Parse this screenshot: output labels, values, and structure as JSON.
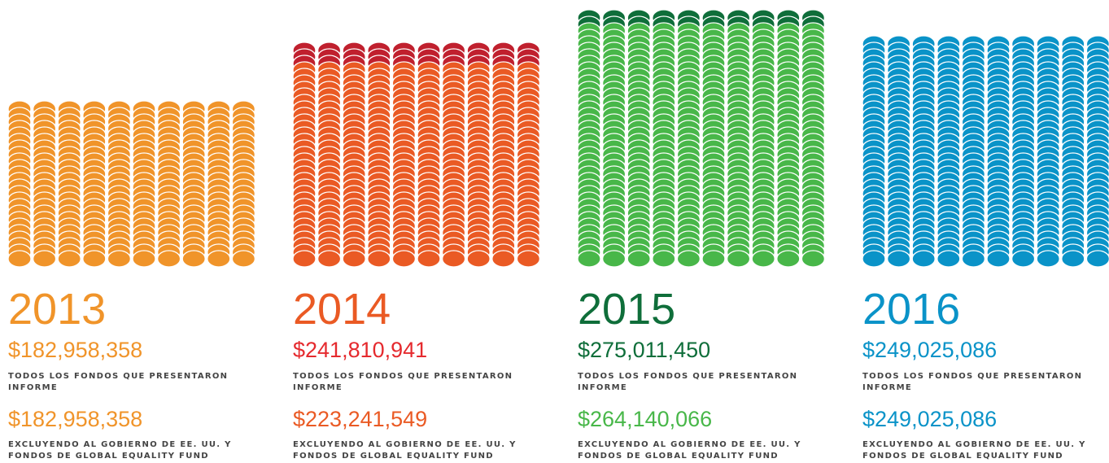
{
  "chart_data": {
    "type": "coin-stack",
    "categories": [
      "2013",
      "2014",
      "2015",
      "2016"
    ],
    "year_colors": [
      "#f0942a",
      "#ea5a24",
      "#0f6e3a",
      "#0a93c8"
    ],
    "series": [
      {
        "name": "TODOS LOS FONDOS QUE PRESENTARON INFORME",
        "colors": [
          "#f0942a",
          "#c0202e",
          "#0f6e3a",
          "#0a93c8"
        ],
        "text_colors": [
          "#f0942a",
          "#e52a2e",
          "#0f6e3a",
          "#0a93c8"
        ],
        "values": [
          182958358,
          241810941,
          275011450,
          249025086
        ],
        "value_labels": [
          "$182,958,358",
          "$241,810,941",
          "$275,011,450",
          "$249,025,086"
        ]
      },
      {
        "name": "EXCLUYENDO AL GOBIERNO DE EE. UU. Y FONDOS DE GLOBAL EQUALITY FUND",
        "colors": [
          "#f0942a",
          "#ea5a24",
          "#48b749",
          "#0a93c8"
        ],
        "text_colors": [
          "#f0942a",
          "#ea5a24",
          "#48b749",
          "#0a93c8"
        ],
        "values": [
          182958358,
          223241549,
          264140066,
          249025086
        ],
        "value_labels": [
          "$182,958,358",
          "$223,241,549",
          "$264,140,066",
          "$249,025,086"
        ]
      }
    ]
  }
}
